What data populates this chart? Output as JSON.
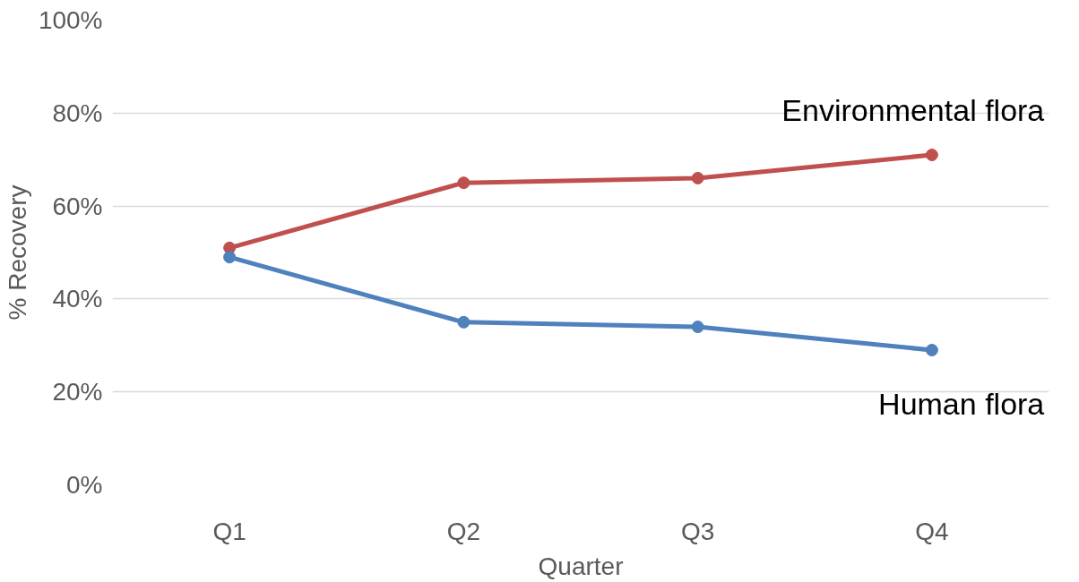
{
  "chart_data": {
    "type": "line",
    "xlabel": "Quarter",
    "ylabel": "% Recovery",
    "categories": [
      "Q1",
      "Q2",
      "Q3",
      "Q4"
    ],
    "series": [
      {
        "name": "Environmental flora",
        "color": "#c0504d",
        "values": [
          51,
          65,
          66,
          71
        ]
      },
      {
        "name": "Human flora",
        "color": "#4f81bd",
        "values": [
          49,
          35,
          34,
          29
        ]
      }
    ],
    "ylim": [
      0,
      100
    ],
    "yticks": [
      {
        "value": 0,
        "label": "0%"
      },
      {
        "value": 20,
        "label": "20%"
      },
      {
        "value": 40,
        "label": "40%"
      },
      {
        "value": 60,
        "label": "60%"
      },
      {
        "value": 80,
        "label": "80%"
      },
      {
        "value": 100,
        "label": "100%"
      }
    ],
    "grid": "y",
    "marker": "circle",
    "line_style": "solid"
  }
}
